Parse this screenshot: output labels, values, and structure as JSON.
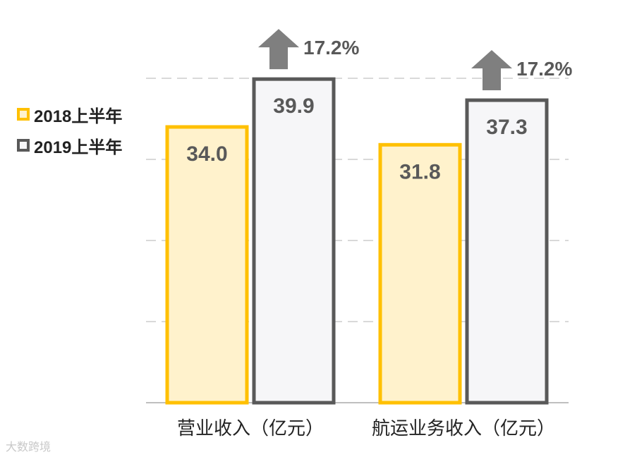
{
  "chart_data": {
    "type": "bar",
    "categories": [
      "营业收入（亿元）",
      "航运业务收入（亿元）"
    ],
    "series": [
      {
        "name": "2018上半年",
        "values": [
          34.0,
          31.8
        ],
        "fill": "#fff2cc",
        "stroke": "#ffc000"
      },
      {
        "name": "2019上半年",
        "values": [
          39.9,
          37.3
        ],
        "fill": "#f6f6f8",
        "stroke": "#595959"
      }
    ],
    "value_labels": [
      [
        "34.0",
        "31.8"
      ],
      [
        "39.9",
        "37.3"
      ]
    ],
    "annotations": [
      {
        "text": "17.2%",
        "category": 0,
        "icon": "up-arrow-icon"
      },
      {
        "text": "17.2%",
        "category": 1,
        "icon": "up-arrow-icon"
      }
    ],
    "ylim": [
      0,
      40
    ],
    "grid": true,
    "legend_position": "left",
    "colors": {
      "grid": "#d9d9d9",
      "axis": "#bfbfbf",
      "arrow": "#7f7f7f",
      "label": "#595959"
    }
  },
  "legend": {
    "items": [
      {
        "label": "2018上半年",
        "color": "#ffc000"
      },
      {
        "label": "2019上半年",
        "color": "#595959"
      }
    ]
  },
  "watermark": "大数跨境"
}
